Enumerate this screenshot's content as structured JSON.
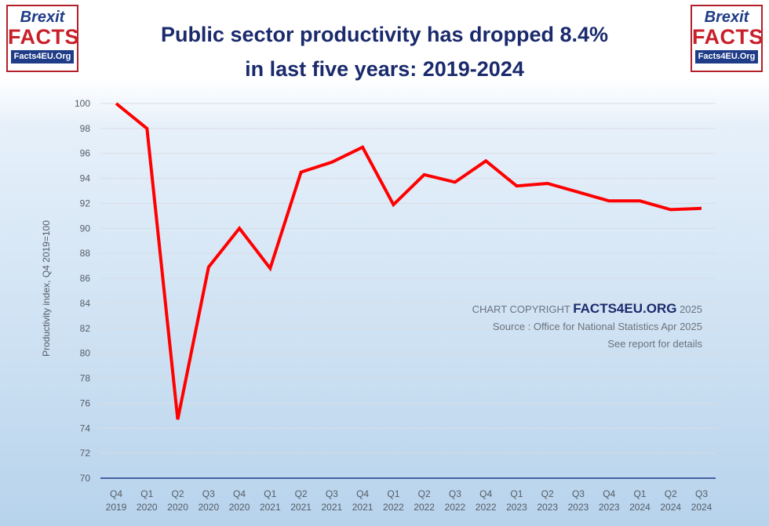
{
  "logo": {
    "brexit": "Brexit",
    "facts": "FACTS",
    "url": "Facts4EU.Org"
  },
  "title": {
    "line1": "Public sector productivity has dropped 8.4%",
    "line2": "in last five years: 2019-2024"
  },
  "copyright": {
    "prefix": "CHART COPYRIGHT",
    "brand": "FACTS4EU.ORG",
    "year": "2025",
    "source": "Source : Office for National Statistics Apr 2025",
    "note": "See report for details"
  },
  "colors": {
    "line": "#ff0000",
    "grid": "#d9dde3",
    "axis": "#1f3c88",
    "tick_text": "#555c66"
  },
  "chart_data": {
    "type": "line",
    "title": "Public sector productivity has dropped 8.4% in last five years: 2019-2024",
    "xlabel": "",
    "ylabel": "Productivity index, Q4 2019=100",
    "ylim": [
      70,
      100
    ],
    "yticks": [
      70,
      72,
      74,
      76,
      78,
      80,
      82,
      84,
      86,
      88,
      90,
      92,
      94,
      96,
      98,
      100
    ],
    "grid": true,
    "categories": [
      [
        "Q4",
        "2019"
      ],
      [
        "Q1",
        "2020"
      ],
      [
        "Q2",
        "2020"
      ],
      [
        "Q3",
        "2020"
      ],
      [
        "Q4",
        "2020"
      ],
      [
        "Q1",
        "2021"
      ],
      [
        "Q2",
        "2021"
      ],
      [
        "Q3",
        "2021"
      ],
      [
        "Q4",
        "2021"
      ],
      [
        "Q1",
        "2022"
      ],
      [
        "Q2",
        "2022"
      ],
      [
        "Q3",
        "2022"
      ],
      [
        "Q4",
        "2022"
      ],
      [
        "Q1",
        "2023"
      ],
      [
        "Q2",
        "2023"
      ],
      [
        "Q3",
        "2023"
      ],
      [
        "Q4",
        "2023"
      ],
      [
        "Q1",
        "2024"
      ],
      [
        "Q2",
        "2024"
      ],
      [
        "Q3",
        "2024"
      ]
    ],
    "series": [
      {
        "name": "Public sector productivity",
        "values": [
          100,
          98,
          74.7,
          86.9,
          90,
          86.8,
          94.5,
          95.3,
          96.5,
          91.9,
          94.3,
          93.7,
          95.4,
          93.4,
          93.6,
          92.9,
          92.2,
          92.2,
          91.5,
          91.6
        ]
      }
    ]
  }
}
